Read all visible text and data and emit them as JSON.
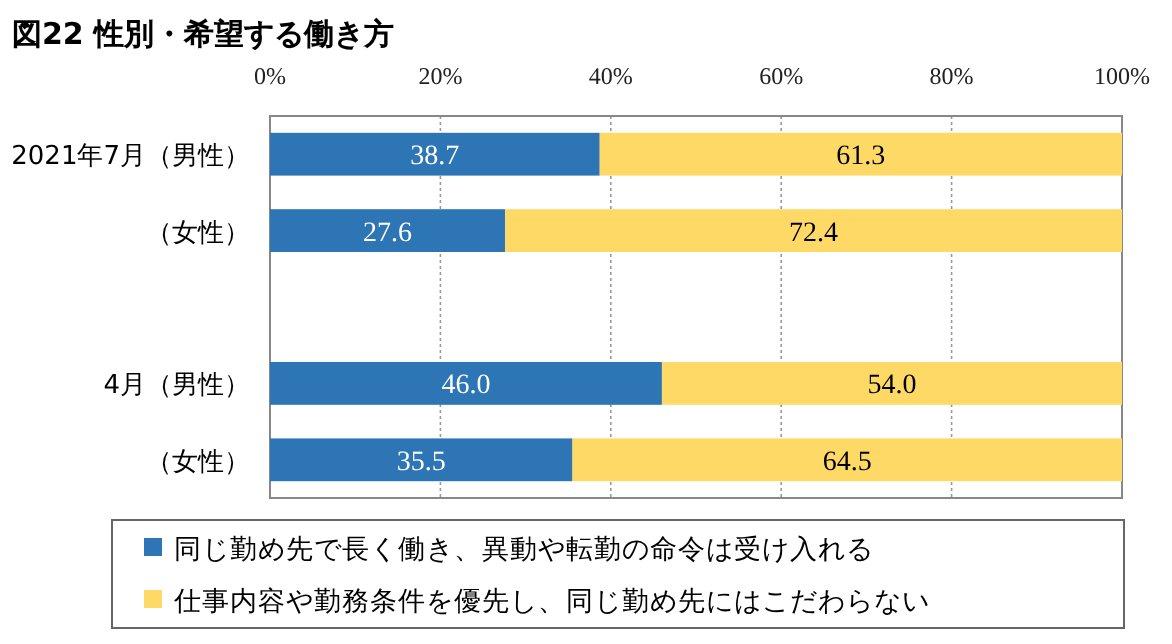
{
  "chart_data": {
    "type": "bar",
    "orientation": "horizontal",
    "stacked": true,
    "title": "図22 性別・希望する働き方",
    "categories": [
      "2021年7月（男性）",
      "（女性）",
      null,
      "4月（男性）",
      "（女性）"
    ],
    "series": [
      {
        "name": "同じ勤め先で長く働き、異動や転勤の命令は受け入れる",
        "color": "#2e75b6",
        "values": [
          38.7,
          27.6,
          null,
          46.0,
          35.5
        ],
        "value_labels": [
          "38.7",
          "27.6",
          null,
          "46.0",
          "35.5"
        ]
      },
      {
        "name": "仕事内容や勤務条件を優先し、同じ勤め先にはこだわらない",
        "color": "#ffd966",
        "values": [
          61.3,
          72.4,
          null,
          54.0,
          64.5
        ],
        "value_labels": [
          "61.3",
          "72.4",
          null,
          "54.0",
          "64.5"
        ]
      }
    ],
    "xlim": [
      0,
      100
    ],
    "xticks": [
      {
        "value": 0,
        "label": "0%"
      },
      {
        "value": 20,
        "label": "20%"
      },
      {
        "value": 40,
        "label": "40%"
      },
      {
        "value": 60,
        "label": "60%"
      },
      {
        "value": 80,
        "label": "80%"
      },
      {
        "value": 100,
        "label": "100%"
      }
    ],
    "grid": "x",
    "legend": "bottom"
  }
}
